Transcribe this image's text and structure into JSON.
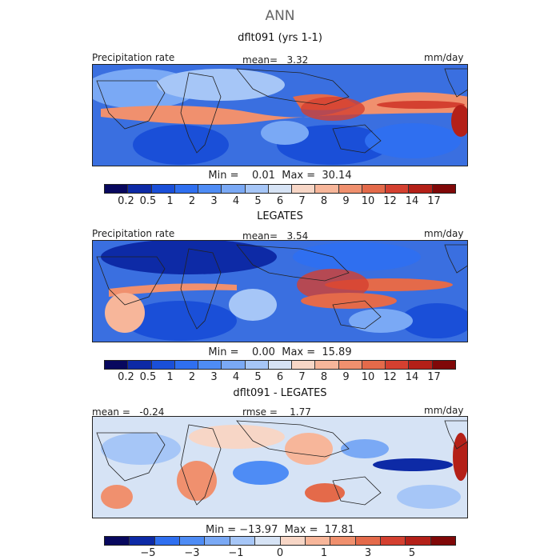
{
  "title": "ANN",
  "panels": [
    {
      "subtitle": "dflt091 (yrs 1-1)",
      "label_left": "Precipitation rate",
      "stat_text": "mean=   3.32",
      "units": "mm/day",
      "minmax": "Min =    0.01  Max =  30.14",
      "ticks": [
        "0.2",
        "0.5",
        "1",
        "2",
        "3",
        "4",
        "5",
        "6",
        "7",
        "8",
        "9",
        "10",
        "12",
        "14",
        "17"
      ]
    },
    {
      "subtitle": "LEGATES",
      "label_left": "Precipitation rate",
      "stat_text": "mean=   3.54",
      "units": "mm/day",
      "minmax": "Min =    0.00  Max =  15.89",
      "ticks": [
        "0.2",
        "0.5",
        "1",
        "2",
        "3",
        "4",
        "5",
        "6",
        "7",
        "8",
        "9",
        "10",
        "12",
        "14",
        "17"
      ]
    },
    {
      "subtitle": "dflt091 - LEGATES",
      "label_left": "mean =   -0.24",
      "stat_text": "rmse =    1.77",
      "units": "mm/day",
      "minmax": "Min = −13.97  Max =  17.81",
      "ticks": [
        "−5",
        "−3",
        "−1",
        "0",
        "1",
        "3",
        "5"
      ]
    }
  ],
  "colors": {
    "seq": [
      "#08085e",
      "#0d2aa6",
      "#1a4fd8",
      "#2f6ff0",
      "#4e8cf5",
      "#7aa9f5",
      "#a6c6f7",
      "#d6e3f5",
      "#f7d6c6",
      "#f7b69a",
      "#f0906e",
      "#e46a4a",
      "#d44030",
      "#b42018",
      "#800808"
    ],
    "div": [
      "#08085e",
      "#0d2aa6",
      "#2f6ff0",
      "#4e8cf5",
      "#7aa9f5",
      "#a6c6f7",
      "#d6e3f5",
      "#f7d6c6",
      "#f7b69a",
      "#f0906e",
      "#e46a4a",
      "#d44030",
      "#b42018",
      "#800808"
    ],
    "ocean_blue": "#3a6fe0",
    "rain_red": "#e0553a"
  }
}
